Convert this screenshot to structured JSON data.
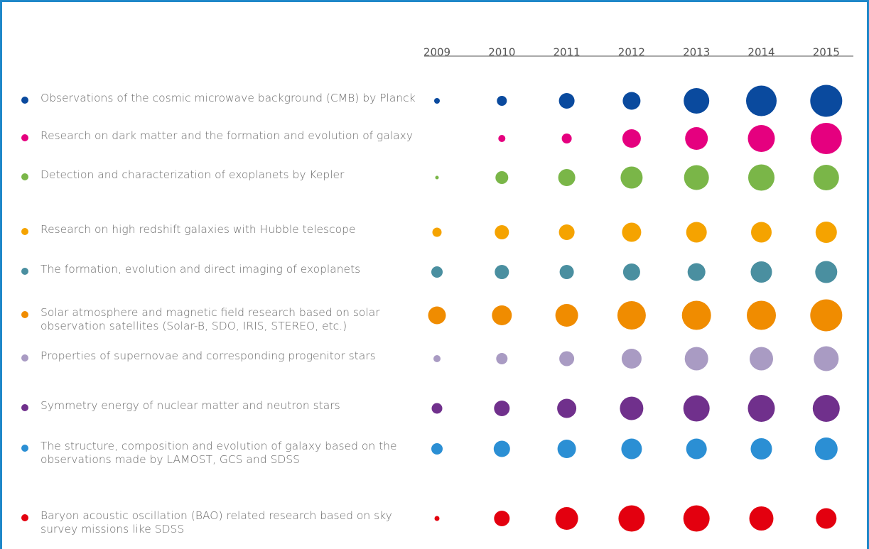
{
  "chart_data": {
    "type": "bubble",
    "categories": [
      "2009",
      "2010",
      "2011",
      "2012",
      "2013",
      "2014",
      "2015"
    ],
    "series": [
      {
        "name": "Observations of the cosmic microwave background (CMB) by Planck",
        "color": "#0a4a9e",
        "values": [
          8,
          14,
          22,
          25,
          36,
          43,
          45
        ]
      },
      {
        "name": "Research on dark matter and the formation and evolution of galaxy",
        "color": "#e5007f",
        "values": [
          null,
          10,
          14,
          26,
          32,
          38,
          44
        ]
      },
      {
        "name": "Detection and characterization of exoplanets by Kepler",
        "color": "#7ab648",
        "values": [
          5,
          18,
          24,
          31,
          35,
          37,
          36
        ]
      },
      {
        "name": "Research on high redshift galaxies with Hubble telescope",
        "color": "#f5a300",
        "values": [
          13,
          20,
          22,
          27,
          29,
          29,
          30
        ]
      },
      {
        "name": "The formation, evolution and direct imaging of exoplanets",
        "color": "#4a8fa0",
        "values": [
          16,
          20,
          20,
          24,
          25,
          30,
          31
        ]
      },
      {
        "name": "Solar atmosphere and magnetic field research based on solar observation satellites (Solar-B, SDO, IRIS, STEREO, etc.)",
        "color": "#f08c00",
        "values": [
          25,
          28,
          32,
          40,
          41,
          41,
          45
        ]
      },
      {
        "name": "Properties of supernovae and corresponding progenitor stars",
        "color": "#a99bc3",
        "values": [
          10,
          16,
          21,
          28,
          33,
          33,
          35
        ]
      },
      {
        "name": "Symmetry energy of nuclear matter and neutron stars",
        "color": "#70308c",
        "values": [
          15,
          22,
          27,
          33,
          37,
          38,
          38
        ]
      },
      {
        "name": "The structure, composition and evolution of galaxy based on the observations made by LAMOST, GCS and SDSS",
        "color": "#2b8fd4",
        "values": [
          16,
          23,
          26,
          29,
          29,
          30,
          32
        ]
      },
      {
        "name": "Baryon acoustic oscillation (BAO) related research based on sky survey missions like SDSS",
        "color": "#e3000f",
        "values": [
          7,
          22,
          32,
          37,
          37,
          34,
          29
        ]
      }
    ]
  }
}
